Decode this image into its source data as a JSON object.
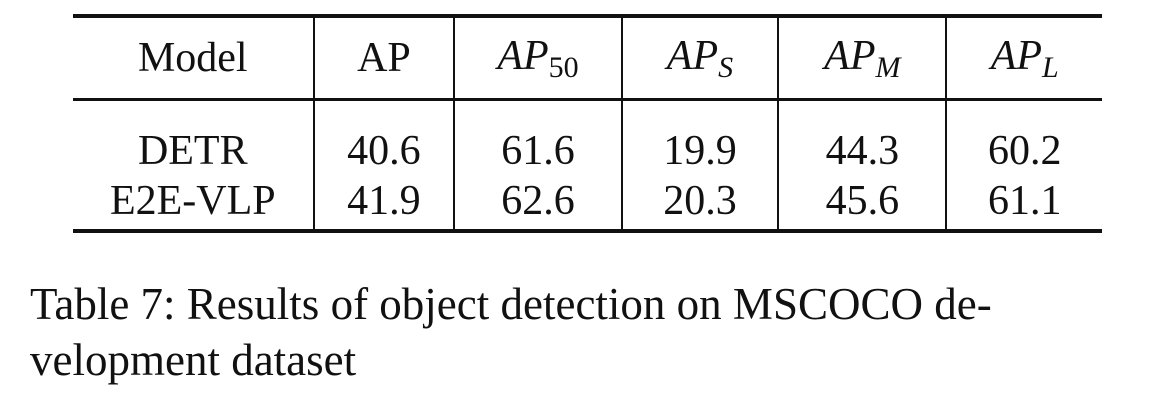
{
  "table": {
    "headers": [
      {
        "text": "Model"
      },
      {
        "text": "AP"
      },
      {
        "base": "AP",
        "sub": "50"
      },
      {
        "base": "AP",
        "sub": "S"
      },
      {
        "base": "AP",
        "sub": "M"
      },
      {
        "base": "AP",
        "sub": "L"
      }
    ],
    "rows": [
      [
        "DETR",
        "40.6",
        "61.6",
        "19.9",
        "44.3",
        "60.2"
      ],
      [
        "E2E-VLP",
        "41.9",
        "62.6",
        "20.3",
        "45.6",
        "61.1"
      ]
    ]
  },
  "caption": {
    "line1": "Table 7: Results of object detection on MSCOCO de-",
    "line2": "velopment dataset"
  }
}
